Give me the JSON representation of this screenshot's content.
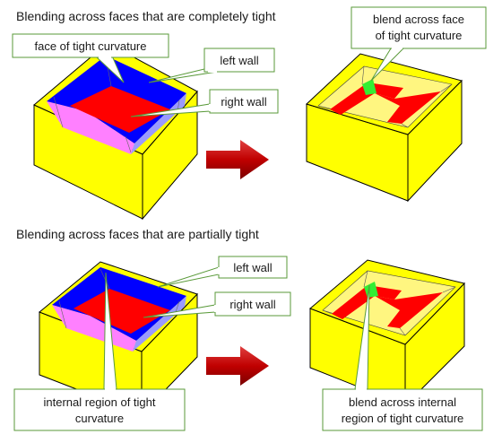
{
  "sections": [
    {
      "heading": "Blending across faces that are completely tight",
      "callouts": {
        "face": "face of tight curvature",
        "left_wall": "left wall",
        "right_wall": "right wall",
        "blend_line1": "blend across face",
        "blend_line2": "of tight curvature"
      }
    },
    {
      "heading": "Blending across faces that are partially tight",
      "callouts": {
        "left_wall": "left wall",
        "right_wall": "right wall",
        "internal_line1": "internal region of tight",
        "internal_line2": "curvature",
        "blend_line1": "blend across internal",
        "blend_line2": "region of tight curvature"
      }
    }
  ],
  "colors": {
    "box_yellow": "#ffff00",
    "wall_blue": "#0000ff",
    "floor_red": "#ff0000",
    "wall_pink": "#ff80ff",
    "blend_green": "#33ee33",
    "arrow_red": "#c00000",
    "callout_border": "#5a9a3a"
  },
  "icons": [
    "arrow-right-icon"
  ]
}
